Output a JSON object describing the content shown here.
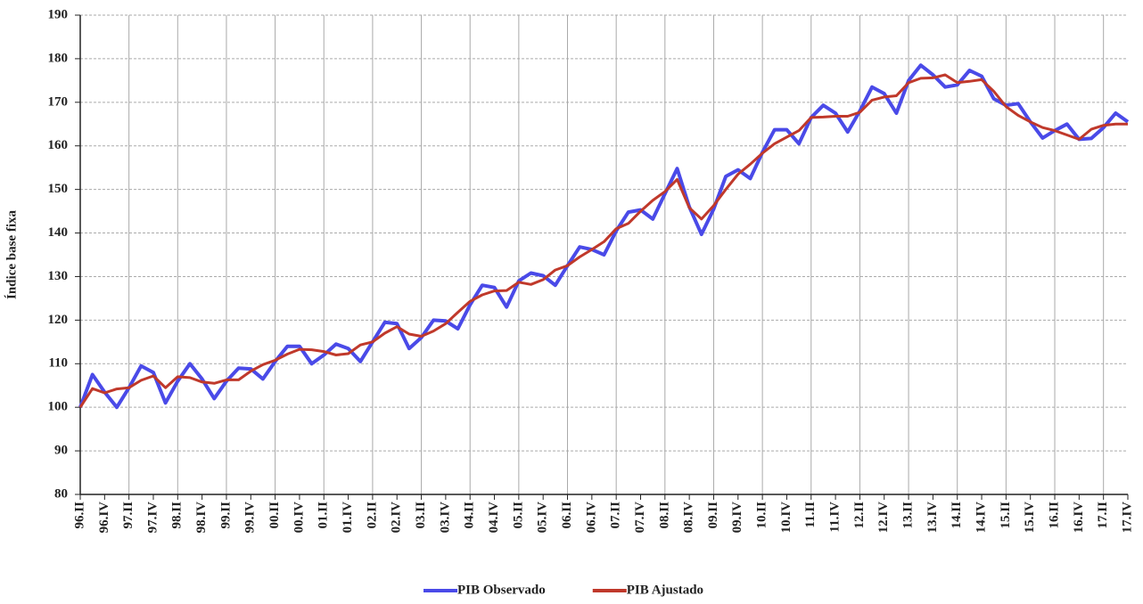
{
  "chart_data": {
    "type": "line",
    "y_label": "Índice base fixa",
    "categories": [
      "96.II",
      null,
      "96.IV",
      null,
      "97.II",
      null,
      "97.IV",
      null,
      "98.II",
      null,
      "98.IV",
      null,
      "99.II",
      null,
      "99.IV",
      null,
      "00.II",
      null,
      "00.IV",
      null,
      "01.II",
      null,
      "01.IV",
      null,
      "02.II",
      null,
      "02.IV",
      null,
      "03.II",
      null,
      "03.IV",
      null,
      "04.II",
      null,
      "04.IV",
      null,
      "05.II",
      null,
      "05.IV",
      null,
      "06.II",
      null,
      "06.IV",
      null,
      "07.II",
      null,
      "07.IV",
      null,
      "08.II",
      null,
      "08.IV",
      null,
      "09.II",
      null,
      "09.IV",
      null,
      "10.II",
      null,
      "10.IV",
      null,
      "11.II",
      null,
      "11.IV",
      null,
      "12.II",
      null,
      "12.IV",
      null,
      "13.II",
      null,
      "13.IV",
      null,
      "14.II",
      null,
      "14.IV",
      null,
      "15.II",
      null,
      "15.IV",
      null,
      "16.II",
      null,
      "16.IV",
      null,
      "17.II",
      null,
      "17.IV"
    ],
    "series": [
      {
        "name": "PIB Observado",
        "color": "#4a4ae8",
        "values": [
          100,
          107.5,
          103.5,
          100,
          104.5,
          109.5,
          108,
          101,
          106,
          110,
          106.5,
          102,
          106,
          109,
          108.8,
          106.5,
          110.5,
          114,
          114,
          110,
          112,
          114.5,
          113.5,
          110.5,
          115,
          119.5,
          119.2,
          113.5,
          116,
          120,
          119.8,
          118,
          123.5,
          128,
          127.5,
          123,
          129,
          130.8,
          130.2,
          128,
          132.5,
          136.8,
          136.2,
          135,
          140.5,
          144.8,
          145.3,
          143.2,
          149,
          154.8,
          146,
          139.7,
          145.5,
          153,
          154.5,
          152.5,
          158.5,
          163.7,
          163.7,
          160.5,
          166.5,
          169.3,
          167.5,
          163.2,
          168,
          173.5,
          172,
          167.5,
          175,
          178.5,
          176.3,
          173.5,
          174,
          177.3,
          176,
          170.8,
          169.3,
          169.7,
          165.5,
          161.8,
          163.5,
          165,
          161.5,
          161.7,
          164.2,
          167.5,
          165.5
        ]
      },
      {
        "name": "PIB Ajustado",
        "color": "#c0392b",
        "values": [
          100,
          104.3,
          103.3,
          104.2,
          104.5,
          106.2,
          107.2,
          104.5,
          107,
          106.8,
          105.8,
          105.5,
          106.3,
          106.3,
          108.3,
          109.8,
          110.8,
          112.2,
          113.3,
          113.2,
          112.8,
          112,
          112.3,
          114.3,
          115,
          117,
          118.5,
          116.8,
          116.3,
          117.5,
          119.2,
          121.8,
          124.3,
          125.8,
          126.7,
          126.8,
          128.7,
          128.2,
          129.3,
          131.5,
          132.5,
          134.5,
          136.2,
          138,
          141,
          142.2,
          145,
          147.5,
          149.5,
          152.3,
          145.8,
          143.2,
          146.3,
          150,
          153.5,
          155.8,
          158.3,
          160.5,
          162,
          163.5,
          166.5,
          166.6,
          166.8,
          166.8,
          167.7,
          170.5,
          171.2,
          171.5,
          174.5,
          175.5,
          175.6,
          176.3,
          174.5,
          174.8,
          175.2,
          172.5,
          169,
          167,
          165.5,
          164.2,
          163.5,
          162.5,
          161.5,
          163.8,
          164.7,
          165,
          165
        ]
      }
    ],
    "ylim": [
      80,
      190
    ],
    "yticks": [
      80,
      90,
      100,
      110,
      120,
      130,
      140,
      150,
      160,
      170,
      180,
      190
    ],
    "grid": true
  }
}
